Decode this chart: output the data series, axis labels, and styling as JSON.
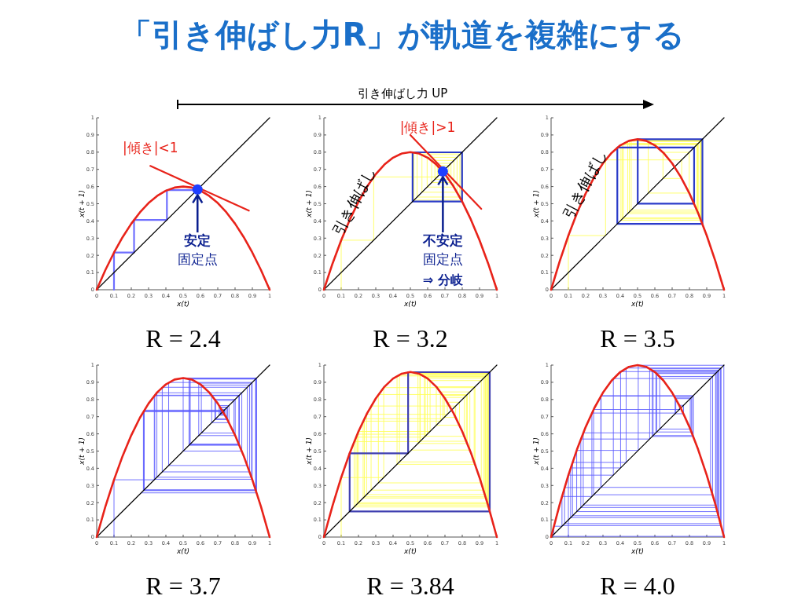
{
  "chart_data": [
    {
      "type": "other",
      "title": "「引き伸ばし力R」が軌道を複雑にする",
      "annotations": [
        "引き伸ばし力 UP"
      ]
    },
    {
      "type": "line",
      "title": "R = 2.4",
      "xlabel": "x(t)",
      "ylabel": "x(t + 1)",
      "xlim": [
        0,
        1
      ],
      "ylim": [
        0,
        1
      ],
      "xticks": [
        0,
        0.1,
        0.2,
        0.3,
        0.4,
        0.5,
        0.6,
        0.7,
        0.8,
        0.9,
        1
      ],
      "yticks": [
        0,
        0.1,
        0.2,
        0.3,
        0.4,
        0.5,
        0.6,
        0.7,
        0.8,
        0.9,
        1
      ],
      "series": [
        {
          "type": "line",
          "color": "#6f6fff",
          "x": [
            0.1,
            0.1,
            0.216,
            0.216,
            0.406,
            0.406,
            0.579
          ],
          "values": [
            0,
            0.216,
            0.216,
            0.406,
            0.406,
            0.579,
            0.579
          ]
        },
        {
          "type": "line",
          "color": "#000000",
          "x": [
            0,
            1
          ],
          "values": [
            0,
            1
          ]
        },
        {
          "type": "line",
          "color": "#e8231a",
          "x": [
            0,
            0.05,
            0.1,
            0.15,
            0.2,
            0.25,
            0.3,
            0.35,
            0.4,
            0.45,
            0.5,
            0.55,
            0.6,
            0.65,
            0.7,
            0.75,
            0.8,
            0.85,
            0.9,
            0.95,
            1
          ],
          "values": [
            0,
            0.114,
            0.216,
            0.306,
            0.384,
            0.45,
            0.504,
            0.546,
            0.576,
            0.594,
            0.6,
            0.594,
            0.576,
            0.546,
            0.504,
            0.45,
            0.384,
            0.306,
            0.216,
            0.114,
            0
          ]
        },
        {
          "type": "line",
          "color": "#e8231a",
          "x": [
            0.31,
            0.88
          ],
          "values": [
            0.72,
            0.46
          ]
        },
        {
          "type": "scatter",
          "color": "#1f3fff",
          "x": [
            0.583
          ],
          "values": [
            0.583
          ]
        }
      ],
      "annotations": [
        "|傾き|<1",
        {
          "text": "安定",
          "x": 0.583,
          "y": 0.583
        },
        "固定点"
      ]
    },
    {
      "type": "line",
      "title": "R = 3.2",
      "xlabel": "x(t)",
      "ylabel": "x(t + 1)",
      "xlim": [
        0,
        1
      ],
      "ylim": [
        0,
        1
      ],
      "xticks": [
        0,
        0.1,
        0.2,
        0.3,
        0.4,
        0.5,
        0.6,
        0.7,
        0.8,
        0.9,
        1
      ],
      "yticks": [
        0,
        0.1,
        0.2,
        0.3,
        0.4,
        0.5,
        0.6,
        0.7,
        0.8,
        0.9,
        1
      ],
      "series": [
        {
          "type": "line",
          "color": "#ffff55",
          "x": [
            0.1,
            0.1,
            0.288,
            0.288,
            0.656,
            0.656,
            0.722,
            0.722,
            0.642,
            0.642,
            0.735,
            0.735,
            0.623,
            0.623,
            0.752,
            0.752,
            0.597,
            0.597,
            0.77,
            0.77,
            0.567,
            0.567,
            0.786,
            0.786,
            0.539,
            0.539,
            0.795,
            0.795,
            0.521,
            0.521,
            0.799,
            0.799
          ],
          "values": [
            0,
            0.288,
            0.288,
            0.656,
            0.656,
            0.722,
            0.722,
            0.642,
            0.642,
            0.735,
            0.735,
            0.623,
            0.623,
            0.752,
            0.752,
            0.597,
            0.597,
            0.77,
            0.77,
            0.567,
            0.567,
            0.786,
            0.786,
            0.539,
            0.539,
            0.795,
            0.795,
            0.521,
            0.521,
            0.799,
            0.799,
            0.513
          ]
        },
        {
          "type": "line",
          "color": "#2b3bc9",
          "x": [
            0.513,
            0.513,
            0.799,
            0.799,
            0.513,
            0.513
          ],
          "values": [
            0.513,
            0.799,
            0.799,
            0.513,
            0.513,
            0.799
          ]
        },
        {
          "type": "line",
          "color": "#000000",
          "x": [
            0,
            1
          ],
          "values": [
            0,
            1
          ]
        },
        {
          "type": "line",
          "color": "#e8231a",
          "x": [
            0,
            0.05,
            0.1,
            0.15,
            0.2,
            0.25,
            0.3,
            0.35,
            0.4,
            0.45,
            0.5,
            0.55,
            0.6,
            0.65,
            0.7,
            0.75,
            0.8,
            0.85,
            0.9,
            0.95,
            1
          ],
          "values": [
            0,
            0.152,
            0.288,
            0.408,
            0.512,
            0.6,
            0.672,
            0.728,
            0.768,
            0.792,
            0.8,
            0.792,
            0.768,
            0.728,
            0.672,
            0.6,
            0.512,
            0.408,
            0.288,
            0.152,
            0
          ]
        },
        {
          "type": "line",
          "color": "#e8231a",
          "x": [
            0.5,
            0.91
          ],
          "values": [
            0.9,
            0.47
          ]
        },
        {
          "type": "scatter",
          "color": "#1f3fff",
          "x": [
            0.688
          ],
          "values": [
            0.688
          ]
        }
      ],
      "annotations": [
        "|傾き|>1",
        "引き伸ばし",
        {
          "text": "不安定",
          "x": 0.688,
          "y": 0.688
        },
        "固定点",
        "⇒ 分岐"
      ]
    },
    {
      "type": "line",
      "title": "R = 3.5",
      "xlabel": "x(t)",
      "ylabel": "x(t + 1)",
      "xlim": [
        0,
        1
      ],
      "ylim": [
        0,
        1
      ],
      "xticks": [
        0,
        0.1,
        0.2,
        0.3,
        0.4,
        0.5,
        0.6,
        0.7,
        0.8,
        0.9,
        1
      ],
      "yticks": [
        0,
        0.1,
        0.2,
        0.3,
        0.4,
        0.5,
        0.6,
        0.7,
        0.8,
        0.9,
        1
      ],
      "series": [
        {
          "type": "line",
          "color": "#ffff55",
          "x": [
            0.1,
            0.1,
            0.315,
            0.315,
            0.755,
            0.755,
            0.647,
            0.647,
            0.799,
            0.799,
            0.562,
            0.562,
            0.862,
            0.862,
            0.418,
            0.418,
            0.851,
            0.851,
            0.443,
            0.443,
            0.864,
            0.864,
            0.412,
            0.412,
            0.848,
            0.848,
            0.452,
            0.452,
            0.867,
            0.867,
            0.404,
            0.404,
            0.843,
            0.843,
            0.463,
            0.463,
            0.87,
            0.87
          ],
          "values": [
            0,
            0.315,
            0.315,
            0.755,
            0.755,
            0.647,
            0.647,
            0.799,
            0.799,
            0.562,
            0.562,
            0.862,
            0.862,
            0.418,
            0.418,
            0.851,
            0.851,
            0.443,
            0.443,
            0.864,
            0.864,
            0.412,
            0.412,
            0.848,
            0.848,
            0.452,
            0.452,
            0.867,
            0.867,
            0.404,
            0.404,
            0.843,
            0.843,
            0.463,
            0.463,
            0.87,
            0.87,
            0.396
          ]
        },
        {
          "type": "line",
          "color": "#2b3bc9",
          "x": [
            0.383,
            0.383,
            0.827,
            0.827,
            0.501,
            0.501,
            0.875,
            0.875,
            0.383,
            0.383
          ],
          "values": [
            0.383,
            0.827,
            0.827,
            0.501,
            0.501,
            0.875,
            0.875,
            0.383,
            0.383,
            0.827
          ]
        },
        {
          "type": "line",
          "color": "#000000",
          "x": [
            0,
            1
          ],
          "values": [
            0,
            1
          ]
        },
        {
          "type": "line",
          "color": "#e8231a",
          "x": [
            0,
            0.05,
            0.1,
            0.15,
            0.2,
            0.25,
            0.3,
            0.35,
            0.4,
            0.45,
            0.5,
            0.55,
            0.6,
            0.65,
            0.7,
            0.75,
            0.8,
            0.85,
            0.9,
            0.95,
            1
          ],
          "values": [
            0,
            0.166,
            0.315,
            0.446,
            0.56,
            0.656,
            0.735,
            0.796,
            0.84,
            0.866,
            0.875,
            0.866,
            0.84,
            0.796,
            0.735,
            0.656,
            0.56,
            0.446,
            0.315,
            0.166,
            0
          ]
        }
      ],
      "annotations": [
        "引き伸ばし"
      ]
    },
    {
      "type": "line",
      "title": "R = 3.7",
      "xlabel": "x(t)",
      "ylabel": "x(t + 1)",
      "xlim": [
        0,
        1
      ],
      "ylim": [
        0,
        1
      ],
      "xticks": [
        0,
        0.1,
        0.2,
        0.3,
        0.4,
        0.5,
        0.6,
        0.7,
        0.8,
        0.9,
        1
      ],
      "yticks": [
        0,
        0.1,
        0.2,
        0.3,
        0.4,
        0.5,
        0.6,
        0.7,
        0.8,
        0.9,
        1
      ],
      "series": [
        {
          "type": "line",
          "color": "#5a5aff",
          "x": [
            0.1,
            0.1,
            0.333,
            0.333,
            0.822,
            0.822,
            0.541,
            0.541,
            0.919,
            0.919,
            0.275,
            0.275,
            0.738,
            0.738,
            0.716,
            0.716,
            0.753,
            0.753,
            0.688,
            0.688,
            0.794,
            0.794,
            0.605,
            0.605,
            0.884,
            0.884,
            0.379,
            0.379,
            0.871,
            0.871,
            0.416,
            0.416,
            0.899,
            0.899,
            0.336,
            0.336,
            0.825,
            0.825,
            0.534,
            0.534,
            0.921,
            0.921,
            0.27,
            0.27,
            0.729,
            0.729,
            0.731,
            0.731,
            0.727,
            0.727,
            0.734,
            0.734,
            0.722,
            0.722,
            0.742,
            0.742,
            0.708,
            0.708,
            0.765,
            0.765,
            0.665,
            0.665,
            0.824,
            0.824,
            0.536,
            0.536,
            0.92,
            0.92,
            0.272,
            0.272,
            0.733,
            0.733,
            0.724,
            0.724,
            0.739,
            0.739,
            0.714,
            0.714,
            0.756,
            0.756,
            0.683,
            0.683,
            0.801,
            0.801,
            0.59,
            0.59,
            0.895,
            0.895,
            0.348,
            0.348,
            0.839,
            0.839,
            0.5,
            0.5,
            0.925,
            0.925,
            0.257
          ],
          "values": [
            0,
            0.333,
            0.333,
            0.822,
            0.822,
            0.541,
            0.541,
            0.919,
            0.919,
            0.275,
            0.275,
            0.738,
            0.738,
            0.716,
            0.716,
            0.753,
            0.753,
            0.688,
            0.688,
            0.794,
            0.794,
            0.605,
            0.605,
            0.884,
            0.884,
            0.379,
            0.379,
            0.871,
            0.871,
            0.416,
            0.416,
            0.899,
            0.899,
            0.336,
            0.336,
            0.825,
            0.825,
            0.534,
            0.534,
            0.921,
            0.921,
            0.27,
            0.27,
            0.729,
            0.729,
            0.731,
            0.731,
            0.727,
            0.727,
            0.734,
            0.734,
            0.722,
            0.722,
            0.742,
            0.742,
            0.708,
            0.708,
            0.765,
            0.765,
            0.665,
            0.665,
            0.824,
            0.824,
            0.536,
            0.536,
            0.92,
            0.92,
            0.272,
            0.272,
            0.733,
            0.733,
            0.724,
            0.724,
            0.739,
            0.739,
            0.714,
            0.714,
            0.756,
            0.756,
            0.683,
            0.683,
            0.801,
            0.801,
            0.59,
            0.59,
            0.895,
            0.895,
            0.348,
            0.348,
            0.839,
            0.839,
            0.5,
            0.5,
            0.925,
            0.925,
            0.257,
            0.257
          ]
        },
        {
          "type": "line",
          "color": "#000000",
          "x": [
            0,
            1
          ],
          "values": [
            0,
            1
          ]
        },
        {
          "type": "line",
          "color": "#e8231a",
          "x": [
            0,
            0.05,
            0.1,
            0.15,
            0.2,
            0.25,
            0.3,
            0.35,
            0.4,
            0.45,
            0.5,
            0.55,
            0.6,
            0.65,
            0.7,
            0.75,
            0.8,
            0.85,
            0.9,
            0.95,
            1
          ],
          "values": [
            0,
            0.176,
            0.333,
            0.472,
            0.592,
            0.694,
            0.777,
            0.842,
            0.888,
            0.916,
            0.925,
            0.916,
            0.888,
            0.842,
            0.777,
            0.694,
            0.592,
            0.472,
            0.333,
            0.176,
            0
          ]
        }
      ]
    },
    {
      "type": "line",
      "title": "R = 3.84",
      "xlabel": "x(t)",
      "ylabel": "x(t + 1)",
      "xlim": [
        0,
        1
      ],
      "ylim": [
        0,
        1
      ],
      "xticks": [
        0,
        0.1,
        0.2,
        0.3,
        0.4,
        0.5,
        0.6,
        0.7,
        0.8,
        0.9,
        1
      ],
      "yticks": [
        0,
        0.1,
        0.2,
        0.3,
        0.4,
        0.5,
        0.6,
        0.7,
        0.8,
        0.9,
        1
      ],
      "series": [
        {
          "type": "line",
          "color": "#ffff55",
          "x": [
            0.1,
            0.1,
            0.346,
            0.346,
            0.869,
            0.869,
            0.437,
            0.437,
            0.945,
            0.945,
            0.2,
            0.2,
            0.614,
            0.614,
            0.91,
            0.91,
            0.315,
            0.315,
            0.829,
            0.829,
            0.544,
            0.544,
            0.952,
            0.952,
            0.175,
            0.175,
            0.555,
            0.555,
            0.949,
            0.949,
            0.186,
            0.186,
            0.581,
            0.581,
            0.935,
            0.935,
            0.234,
            0.234,
            0.688,
            0.688,
            0.824,
            0.824,
            0.557,
            0.557,
            0.947,
            0.947,
            0.193,
            0.193,
            0.598,
            0.598,
            0.923,
            0.923,
            0.273,
            0.273,
            0.762,
            0.762,
            0.696,
            0.696,
            0.812,
            0.812,
            0.586,
            0.586,
            0.931,
            0.931,
            0.247,
            0.247,
            0.714,
            0.714,
            0.784,
            0.784,
            0.65,
            0.65,
            0.874,
            0.874,
            0.423,
            0.423,
            0.937,
            0.937,
            0.227,
            0.227,
            0.674,
            0.674,
            0.844,
            0.844,
            0.506
          ],
          "values": [
            0,
            0.346,
            0.346,
            0.869,
            0.869,
            0.437,
            0.437,
            0.945,
            0.945,
            0.2,
            0.2,
            0.614,
            0.614,
            0.91,
            0.91,
            0.315,
            0.315,
            0.829,
            0.829,
            0.544,
            0.544,
            0.952,
            0.952,
            0.175,
            0.175,
            0.555,
            0.555,
            0.949,
            0.949,
            0.186,
            0.186,
            0.581,
            0.581,
            0.935,
            0.935,
            0.234,
            0.234,
            0.688,
            0.688,
            0.824,
            0.824,
            0.557,
            0.557,
            0.947,
            0.947,
            0.193,
            0.193,
            0.598,
            0.598,
            0.923,
            0.923,
            0.273,
            0.273,
            0.762,
            0.762,
            0.696,
            0.696,
            0.812,
            0.812,
            0.586,
            0.586,
            0.931,
            0.931,
            0.247,
            0.247,
            0.714,
            0.714,
            0.784,
            0.784,
            0.65,
            0.65,
            0.874,
            0.874,
            0.423,
            0.423,
            0.937,
            0.937,
            0.227,
            0.227,
            0.674,
            0.674,
            0.844,
            0.844,
            0.506,
            0.506
          ]
        },
        {
          "type": "line",
          "color": "#3f3fb0",
          "x": [
            0.149,
            0.149,
            0.487,
            0.487,
            0.959,
            0.959,
            0.149,
            0.149
          ],
          "values": [
            0.149,
            0.487,
            0.487,
            0.959,
            0.959,
            0.149,
            0.149,
            0.487
          ]
        },
        {
          "type": "line",
          "color": "#000000",
          "x": [
            0,
            1
          ],
          "values": [
            0,
            1
          ]
        },
        {
          "type": "line",
          "color": "#e8231a",
          "x": [
            0,
            0.05,
            0.1,
            0.15,
            0.2,
            0.25,
            0.3,
            0.35,
            0.4,
            0.45,
            0.5,
            0.55,
            0.6,
            0.65,
            0.7,
            0.75,
            0.8,
            0.85,
            0.9,
            0.95,
            1
          ],
          "values": [
            0,
            0.182,
            0.346,
            0.49,
            0.614,
            0.72,
            0.806,
            0.874,
            0.922,
            0.95,
            0.96,
            0.95,
            0.922,
            0.874,
            0.806,
            0.72,
            0.614,
            0.49,
            0.346,
            0.182,
            0
          ]
        }
      ]
    },
    {
      "type": "line",
      "title": "R = 4.0",
      "xlabel": "x(t)",
      "ylabel": "x(t + 1)",
      "xlim": [
        0,
        1
      ],
      "ylim": [
        0,
        1
      ],
      "xticks": [
        0,
        0.1,
        0.2,
        0.3,
        0.4,
        0.5,
        0.6,
        0.7,
        0.8,
        0.9,
        1
      ],
      "yticks": [
        0,
        0.1,
        0.2,
        0.3,
        0.4,
        0.5,
        0.6,
        0.7,
        0.8,
        0.9,
        1
      ],
      "series": [
        {
          "type": "line",
          "color": "#5a5aff",
          "x": [
            0.1,
            0.1,
            0.36,
            0.36,
            0.922,
            0.922,
            0.289,
            0.289,
            0.822,
            0.822,
            0.585,
            0.585,
            0.971,
            0.971,
            0.113,
            0.113,
            0.402,
            0.402,
            0.962,
            0.962,
            0.148,
            0.148,
            0.504,
            0.504,
            0.999,
            0.999,
            0.004,
            0.004,
            0.016,
            0.016,
            0.063,
            0.063,
            0.236,
            0.236,
            0.721,
            0.721,
            0.805,
            0.805,
            0.628,
            0.628,
            0.934,
            0.934,
            0.246,
            0.246,
            0.742,
            0.742,
            0.766,
            0.766,
            0.717,
            0.717,
            0.812,
            0.812,
            0.611,
            0.611,
            0.951,
            0.951,
            0.186,
            0.186,
            0.606,
            0.606,
            0.955,
            0.955,
            0.172,
            0.172,
            0.57,
            0.57,
            0.98,
            0.98,
            0.078,
            0.078,
            0.288,
            0.288,
            0.82,
            0.82,
            0.59,
            0.59,
            0.968,
            0.968,
            0.124,
            0.124,
            0.434,
            0.434,
            0.983,
            0.983,
            0.067
          ],
          "values": [
            0,
            0.36,
            0.36,
            0.922,
            0.922,
            0.289,
            0.289,
            0.822,
            0.822,
            0.585,
            0.585,
            0.971,
            0.971,
            0.113,
            0.113,
            0.402,
            0.402,
            0.962,
            0.962,
            0.148,
            0.148,
            0.504,
            0.504,
            0.999,
            0.999,
            0.004,
            0.004,
            0.016,
            0.016,
            0.063,
            0.063,
            0.236,
            0.236,
            0.721,
            0.721,
            0.805,
            0.805,
            0.628,
            0.628,
            0.934,
            0.934,
            0.246,
            0.246,
            0.742,
            0.742,
            0.766,
            0.766,
            0.717,
            0.717,
            0.812,
            0.812,
            0.611,
            0.611,
            0.951,
            0.951,
            0.186,
            0.186,
            0.606,
            0.606,
            0.955,
            0.955,
            0.172,
            0.172,
            0.57,
            0.57,
            0.98,
            0.98,
            0.078,
            0.078,
            0.288,
            0.288,
            0.82,
            0.82,
            0.59,
            0.59,
            0.968,
            0.968,
            0.124,
            0.124,
            0.434,
            0.434,
            0.983,
            0.983,
            0.067,
            0.067
          ]
        },
        {
          "type": "line",
          "color": "#000000",
          "x": [
            0,
            1
          ],
          "values": [
            0,
            1
          ]
        },
        {
          "type": "line",
          "color": "#e8231a",
          "x": [
            0,
            0.05,
            0.1,
            0.15,
            0.2,
            0.25,
            0.3,
            0.35,
            0.4,
            0.45,
            0.5,
            0.55,
            0.6,
            0.65,
            0.7,
            0.75,
            0.8,
            0.85,
            0.9,
            0.95,
            1
          ],
          "values": [
            0,
            0.19,
            0.36,
            0.51,
            0.64,
            0.75,
            0.84,
            0.91,
            0.96,
            0.99,
            1,
            0.99,
            0.96,
            0.91,
            0.84,
            0.75,
            0.64,
            0.51,
            0.36,
            0.19,
            0
          ]
        }
      ]
    }
  ]
}
